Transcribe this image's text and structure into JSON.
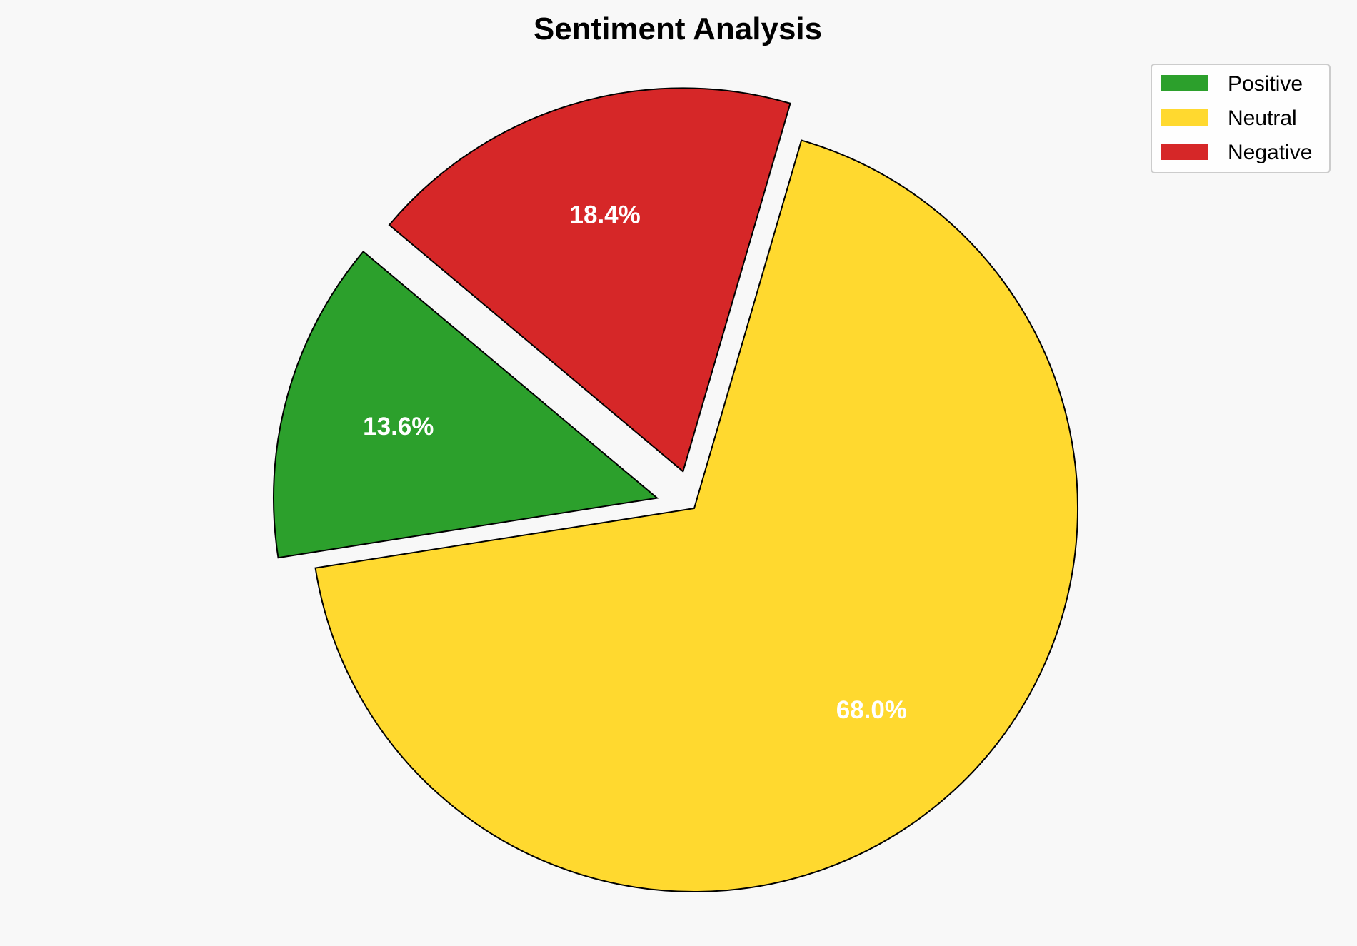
{
  "chart_data": {
    "type": "pie",
    "title": "Sentiment Analysis",
    "categories": [
      "Positive",
      "Neutral",
      "Negative"
    ],
    "values": [
      13.6,
      68.0,
      18.4
    ],
    "labels": [
      "13.6%",
      "68.0%",
      "18.4%"
    ],
    "colors": [
      "#2ca02c",
      "#ffd92f",
      "#d62728"
    ],
    "exploded": [
      true,
      false,
      true
    ],
    "start_angle_deg": 140,
    "direction": "counterclockwise",
    "legend_position": "top-right",
    "edge_color": "#000000",
    "background": "#f8f8f8"
  }
}
